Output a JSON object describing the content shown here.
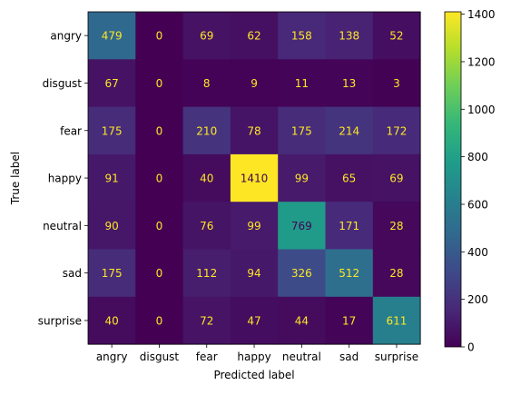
{
  "chart_data": {
    "type": "heatmap",
    "title": "",
    "xlabel": "Predicted label",
    "ylabel": "True label",
    "x_categories": [
      "angry",
      "disgust",
      "fear",
      "happy",
      "neutral",
      "sad",
      "surprise"
    ],
    "y_categories": [
      "angry",
      "disgust",
      "fear",
      "happy",
      "neutral",
      "sad",
      "surprise"
    ],
    "values": [
      [
        479,
        0,
        69,
        62,
        158,
        138,
        52
      ],
      [
        67,
        0,
        8,
        9,
        11,
        13,
        3
      ],
      [
        175,
        0,
        210,
        78,
        175,
        214,
        172
      ],
      [
        91,
        0,
        40,
        1410,
        99,
        65,
        69
      ],
      [
        90,
        0,
        76,
        99,
        769,
        171,
        28
      ],
      [
        175,
        0,
        112,
        94,
        326,
        512,
        28
      ],
      [
        40,
        0,
        72,
        47,
        44,
        17,
        611
      ]
    ],
    "colormap": "viridis",
    "color_range": [
      0,
      1410
    ],
    "colorbar": {
      "ticks": [
        0,
        200,
        400,
        600,
        800,
        1000,
        1200,
        1400
      ]
    },
    "text_color_light": "#fde725",
    "text_color_dark": "#440154",
    "grid": false
  }
}
